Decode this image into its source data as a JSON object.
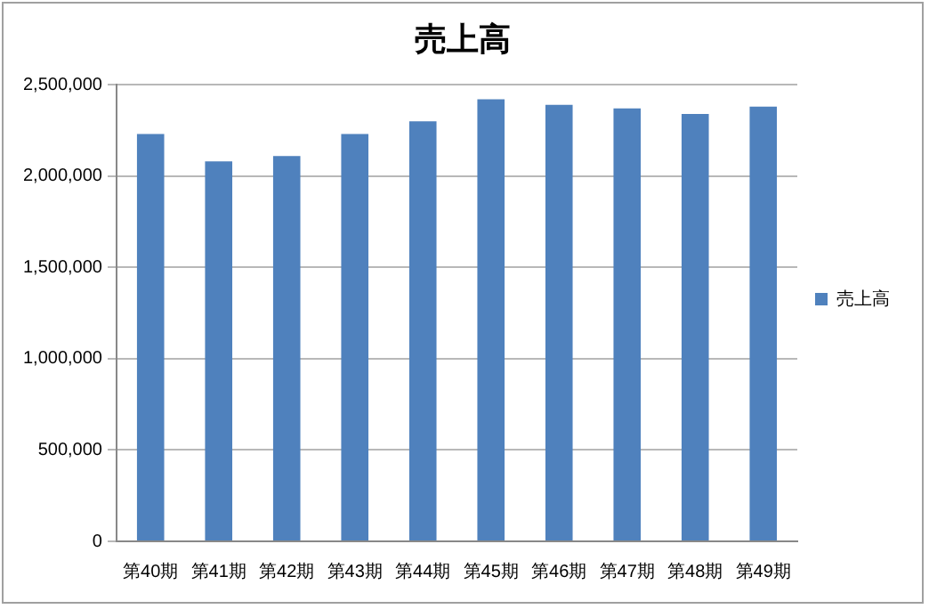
{
  "chart_data": {
    "type": "bar",
    "title": "売上高",
    "categories": [
      "第40期",
      "第41期",
      "第42期",
      "第43期",
      "第44期",
      "第45期",
      "第46期",
      "第47期",
      "第48期",
      "第49期"
    ],
    "series": [
      {
        "name": "売上高",
        "color": "#4f81bd",
        "values": [
          2230000,
          2080000,
          2110000,
          2230000,
          2300000,
          2420000,
          2390000,
          2370000,
          2340000,
          2380000
        ]
      }
    ],
    "ylim": [
      0,
      2500000
    ],
    "yticks": [
      {
        "value": 0,
        "label": "0"
      },
      {
        "value": 500000,
        "label": "500,000"
      },
      {
        "value": 1000000,
        "label": "1,000,000"
      },
      {
        "value": 1500000,
        "label": "1,500,000"
      },
      {
        "value": 2000000,
        "label": "2,000,000"
      },
      {
        "value": 2500000,
        "label": "2,500,000"
      }
    ],
    "grid": "y",
    "legend": "right"
  }
}
